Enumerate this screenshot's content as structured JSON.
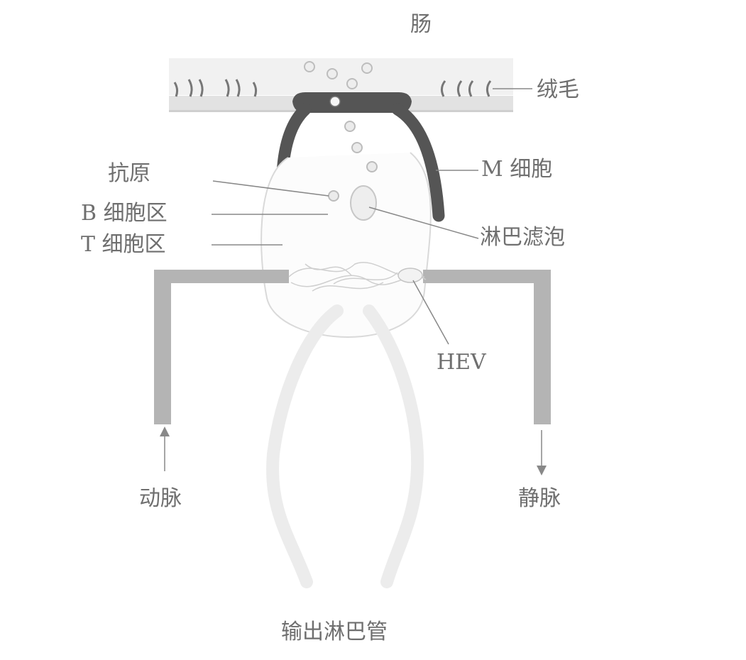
{
  "labels": {
    "intestine": "肠",
    "villi": "绒毛",
    "m_cell": "M 细胞",
    "antigen": "抗原",
    "b_cell_zone": "B 细胞区",
    "t_cell_zone": "T 细胞区",
    "lymphoid_follicle": "淋巴滤泡",
    "hev": "HEV",
    "artery": "动脉",
    "vein": "静脉",
    "efferent_lymphatic": "输出淋巴管"
  },
  "colors": {
    "m_cell": "#555555",
    "epithelium": "#dcdcdc",
    "vessel": "#b4b4b4",
    "lymphatic": "#ececec",
    "text": "#6f6f6f",
    "leader_line": "#888888"
  }
}
